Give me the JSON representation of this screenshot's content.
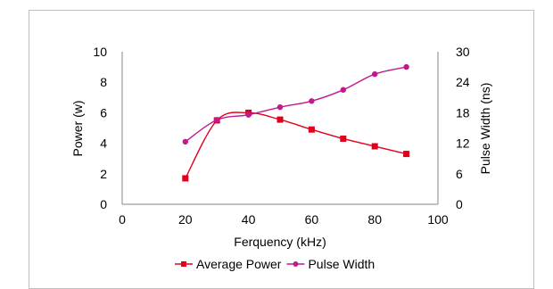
{
  "chart_data": {
    "type": "line",
    "xlabel": "Ferquency (kHz)",
    "ylabel_left": "Power (w)",
    "ylabel_right": "Pulse Width (ns)",
    "xlim": [
      0,
      100
    ],
    "ylim_left": [
      0,
      10
    ],
    "ylim_right": [
      0,
      30
    ],
    "x_ticks": [
      0,
      20,
      40,
      60,
      80,
      100
    ],
    "y_left_ticks": [
      0,
      2,
      4,
      6,
      8,
      10
    ],
    "y_right_ticks": [
      0,
      6,
      12,
      18,
      24,
      30
    ],
    "grid": false,
    "legend_position": "bottom",
    "series": [
      {
        "name": "Average Power",
        "axis": "left",
        "color": "#e0001b",
        "marker": "square",
        "x": [
          20,
          30,
          40,
          50,
          60,
          70,
          80,
          90
        ],
        "values": [
          1.7,
          5.5,
          6.0,
          5.55,
          4.9,
          4.3,
          3.8,
          3.3
        ]
      },
      {
        "name": "Pulse Width",
        "axis": "right",
        "color": "#c21a8c",
        "marker": "circle",
        "x": [
          20,
          30,
          40,
          50,
          60,
          70,
          80,
          90
        ],
        "values": [
          12.3,
          16.6,
          17.6,
          19.1,
          20.3,
          22.5,
          25.6,
          27.0
        ]
      }
    ]
  }
}
